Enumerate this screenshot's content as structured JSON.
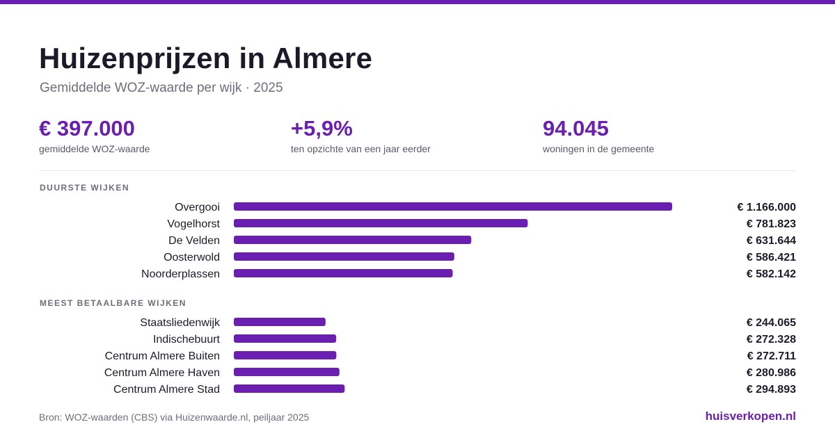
{
  "colors": {
    "accent": "#6b1fb1",
    "text": "#1c1a29",
    "muted": "#6f6c7b"
  },
  "title": "Huizenprijzen in Almere",
  "subtitle": "Gemiddelde WOZ-waarde per wijk · 2025",
  "kpis": [
    {
      "value": "€ 397.000",
      "label": "gemiddelde WOZ-waarde"
    },
    {
      "value": "+5,9%",
      "label": "ten opzichte van een jaar eerder"
    },
    {
      "value": "94.045",
      "label": "woningen in de gemeente"
    }
  ],
  "chart_data": {
    "type": "bar",
    "orientation": "horizontal",
    "sections": [
      {
        "title": "DUURSTE WIJKEN",
        "categories": [
          "Overgooi",
          "Vogelhorst",
          "De Velden",
          "Oosterwold",
          "Noorderplassen"
        ],
        "values": [
          1166000,
          781823,
          631644,
          586421,
          582142
        ],
        "value_labels": [
          "€ 1.166.000",
          "€ 781.823",
          "€ 631.644",
          "€ 586.421",
          "€ 582.142"
        ]
      },
      {
        "title": "MEEST BETAALBARE WIJKEN",
        "categories": [
          "Staatsliedenwijk",
          "Indischebuurt",
          "Centrum Almere Buiten",
          "Centrum Almere Haven",
          "Centrum Almere Stad"
        ],
        "values": [
          244065,
          272328,
          272711,
          280986,
          294893
        ],
        "value_labels": [
          "€ 244.065",
          "€ 272.328",
          "€ 272.711",
          "€ 280.986",
          "€ 294.893"
        ]
      }
    ],
    "xlim": [
      0,
      1166000
    ],
    "grid": false,
    "legend": "none"
  },
  "footer": {
    "source": "Bron: WOZ-waarden (CBS) via Huizenwaarde.nl, peiljaar 2025",
    "brand": "huisverkopen.nl"
  }
}
